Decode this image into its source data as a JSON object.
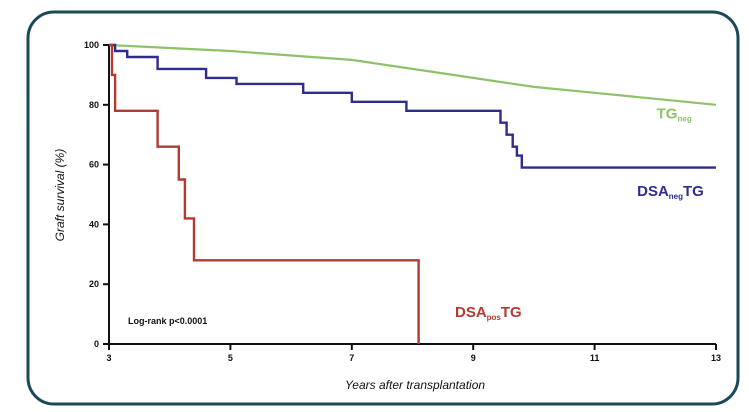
{
  "chart_data": {
    "type": "line",
    "step": true,
    "xlabel": "Years after transplantation",
    "ylabel": "Graft survival (%)",
    "xlim": [
      3,
      13
    ],
    "ylim": [
      0,
      100
    ],
    "x_ticks": [
      3,
      5,
      7,
      9,
      11,
      13
    ],
    "y_ticks": [
      0,
      20,
      40,
      60,
      80,
      100
    ],
    "grid": false,
    "annotation": "Log-rank p<0.0001",
    "series": [
      {
        "key": "tg_neg",
        "label_main": "TG",
        "label_sub": "neg",
        "label_tail": "",
        "color": "#8dc26b",
        "step": false,
        "label_at": [
          12.6,
          75.5
        ],
        "points": [
          [
            3,
            100
          ],
          [
            4,
            99
          ],
          [
            5,
            98
          ],
          [
            6,
            96.5
          ],
          [
            7,
            95
          ],
          [
            8,
            92
          ],
          [
            9,
            89
          ],
          [
            10,
            86
          ],
          [
            11,
            84
          ],
          [
            12,
            82
          ],
          [
            13,
            80
          ]
        ]
      },
      {
        "key": "dsa_neg_tg",
        "label_main": "DSA",
        "label_sub": "neg",
        "label_tail": "TG",
        "color": "#2e2c8c",
        "step": true,
        "label_at": [
          12.8,
          49.5
        ],
        "points": [
          [
            3,
            100
          ],
          [
            3.1,
            98
          ],
          [
            3.3,
            96
          ],
          [
            3.8,
            92
          ],
          [
            4.6,
            89
          ],
          [
            5.1,
            87
          ],
          [
            6.2,
            84
          ],
          [
            7.0,
            81
          ],
          [
            7.9,
            78
          ],
          [
            9.45,
            74
          ],
          [
            9.55,
            70
          ],
          [
            9.65,
            66
          ],
          [
            9.72,
            63
          ],
          [
            9.8,
            59
          ],
          [
            13,
            59
          ]
        ]
      },
      {
        "key": "dsa_pos_tg",
        "label_main": "DSA",
        "label_sub": "pos",
        "label_tail": "TG",
        "color": "#b33a32",
        "step": true,
        "label_at": [
          8.7,
          9
        ],
        "points": [
          [
            3,
            100
          ],
          [
            3.05,
            90
          ],
          [
            3.1,
            78
          ],
          [
            3.8,
            66
          ],
          [
            4.15,
            55
          ],
          [
            4.25,
            42
          ],
          [
            4.4,
            28
          ],
          [
            8.1,
            28
          ],
          [
            8.1,
            0
          ]
        ]
      }
    ]
  },
  "colors": {
    "border": "#1c4858",
    "axis": "#111111"
  }
}
